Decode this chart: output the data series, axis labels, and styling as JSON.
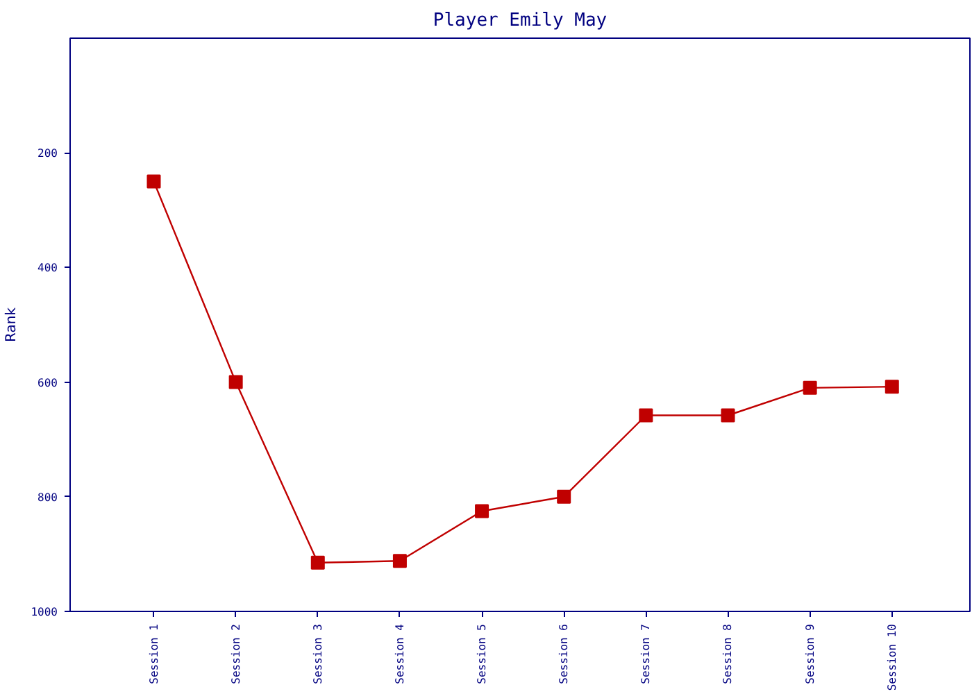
{
  "chart_data": {
    "type": "line",
    "title": "Player Emily May",
    "ylabel": "Rank",
    "categories": [
      "Session 1",
      "Session 2",
      "Session 3",
      "Session 4",
      "Session 5",
      "Session 6",
      "Session 7",
      "Session 8",
      "Session 9",
      "Session 10"
    ],
    "series": [
      {
        "color": "#c00000",
        "values": [
          250,
          600,
          915,
          912,
          825,
          800,
          658,
          658,
          610,
          608
        ]
      }
    ],
    "ylim": [
      1000,
      0
    ],
    "yticks": [
      200,
      400,
      600,
      800,
      1000
    ],
    "grid": false,
    "marker": "square",
    "line_style": "solid"
  }
}
